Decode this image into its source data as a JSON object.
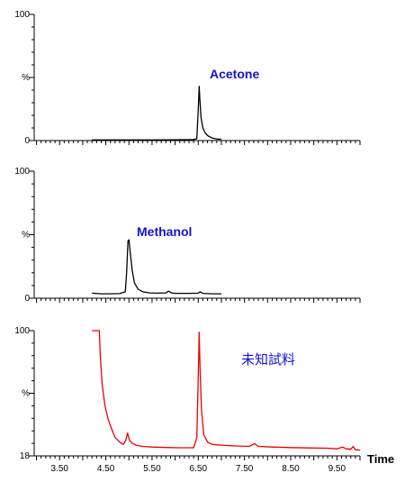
{
  "chart_data": [
    {
      "type": "line",
      "annotation": "Acetone",
      "annotation_color": "#1414c8",
      "line_color": "#000000",
      "y_ticks": [
        {
          "v": 100,
          "label": "100"
        },
        {
          "v": 50,
          "label": "%"
        },
        {
          "v": 0,
          "label": "0"
        }
      ],
      "ylim": [
        0,
        100
      ],
      "xlim": [
        2.95,
        10.0
      ],
      "x": [
        4.2,
        4.6,
        5.0,
        5.5,
        6.0,
        6.4,
        6.47,
        6.5,
        6.52,
        6.54,
        6.56,
        6.6,
        6.65,
        6.72,
        6.8,
        6.9,
        7.0
      ],
      "y": [
        0.5,
        0.5,
        0.5,
        0.5,
        0.6,
        0.8,
        1.5,
        25,
        43,
        30,
        18,
        10,
        6,
        3.5,
        2,
        1.2,
        1.0
      ]
    },
    {
      "type": "line",
      "annotation": "Methanol",
      "annotation_color": "#1414c8",
      "line_color": "#000000",
      "y_ticks": [
        {
          "v": 100,
          "label": "100"
        },
        {
          "v": 50,
          "label": "%"
        },
        {
          "v": 0,
          "label": "0"
        }
      ],
      "ylim": [
        0,
        100
      ],
      "xlim": [
        2.95,
        10.0
      ],
      "x": [
        4.2,
        4.4,
        4.6,
        4.8,
        4.92,
        4.95,
        4.98,
        5.0,
        5.03,
        5.07,
        5.12,
        5.2,
        5.3,
        5.45,
        5.6,
        5.8,
        5.86,
        5.92,
        6.0,
        6.3,
        6.5,
        6.54,
        6.6,
        6.8,
        7.0
      ],
      "y": [
        4,
        3.5,
        3.5,
        3.6,
        5,
        20,
        45,
        46,
        35,
        22,
        12,
        7,
        5,
        4.2,
        4,
        4.2,
        5.5,
        4.2,
        3.8,
        3.8,
        4,
        5,
        3.8,
        3.5,
        3.5
      ]
    },
    {
      "type": "line",
      "annotation": "未知試料",
      "annotation_color": "#1414c8",
      "line_color": "#ee0000",
      "y_ticks": [
        {
          "v": 100,
          "label": "100"
        },
        {
          "v": 59,
          "label": "%"
        },
        {
          "v": 18,
          "label": "18"
        }
      ],
      "ylim": [
        18,
        100
      ],
      "xlim": [
        2.95,
        10.0
      ],
      "x_ticks": [
        3.5,
        4.5,
        5.5,
        6.5,
        7.5,
        8.5,
        9.5
      ],
      "x_tick_labels": [
        "3.50",
        "4.50",
        "5.50",
        "6.50",
        "7.50",
        "8.50",
        "9.50"
      ],
      "xlabel": "Time",
      "x": [
        4.2,
        4.36,
        4.38,
        4.42,
        4.48,
        4.55,
        4.62,
        4.7,
        4.8,
        4.88,
        4.93,
        4.97,
        5.01,
        5.06,
        5.15,
        5.3,
        5.5,
        5.8,
        6.1,
        6.4,
        6.47,
        6.5,
        6.52,
        6.54,
        6.57,
        6.62,
        6.7,
        6.8,
        7.0,
        7.3,
        7.6,
        7.72,
        7.8,
        8.1,
        8.5,
        8.9,
        9.3,
        9.5,
        9.62,
        9.7,
        9.8,
        9.85,
        9.9,
        10.0
      ],
      "y": [
        100,
        100,
        84,
        65,
        51,
        42,
        36,
        30,
        27,
        25.5,
        28,
        33,
        28.5,
        26.5,
        25,
        24.2,
        23.8,
        23.5,
        23.3,
        23.3,
        30,
        70,
        99,
        75,
        48,
        32,
        27,
        25.5,
        25,
        24.5,
        24.2,
        26,
        24.2,
        23.8,
        23.4,
        23.2,
        23,
        22.6,
        23.8,
        22.6,
        22.3,
        24.2,
        22,
        21.8
      ]
    }
  ]
}
